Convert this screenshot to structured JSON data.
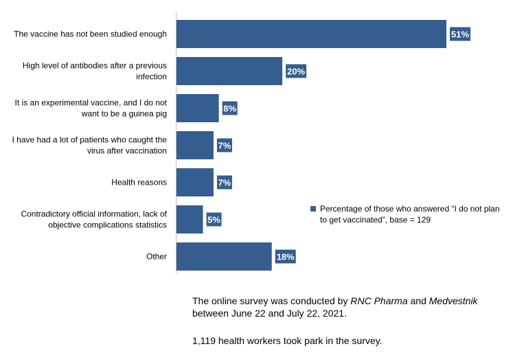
{
  "colors": {
    "bar": "#355d8f",
    "axis": "#bfbfbf",
    "label_box": "#355d8f"
  },
  "chart_data": {
    "type": "bar",
    "orientation": "horizontal",
    "categories": [
      [
        "The vaccine has not been studied enough"
      ],
      [
        "High level of antibodies after a previous",
        "infection"
      ],
      [
        "It is an experimental vaccine, and I do not",
        "want to be a guinea pig"
      ],
      [
        "I have had a lot of patients who caught the",
        "virus after vaccination"
      ],
      [
        "Health reasons"
      ],
      [
        "Contradictory official information, lack of",
        "objective complications statistics"
      ],
      [
        "Other"
      ]
    ],
    "series": [
      {
        "name": "Percentage of those who answered “I do not plan to get vaccinated”, base = 129",
        "values": [
          51,
          20,
          8,
          7,
          7,
          5,
          18
        ],
        "labels": [
          "51%",
          "20%",
          "8%",
          "7%",
          "7%",
          "5%",
          "18%"
        ]
      }
    ],
    "xlim": [
      0,
      51
    ],
    "grid": false,
    "legend_position": "right"
  },
  "legend": {
    "line1": "Percentage of those who answered “I do not plan",
    "line2": "to get vaccinated”, base = 129"
  },
  "notes": {
    "line1_a": "The online survey was conducted by ",
    "line1_b": "RNC Pharma",
    "line1_c": " and ",
    "line1_d": "Medvestnik",
    "line2": "between June 22 and July 22, 2021.",
    "line3": "1,119 health workers took park in the survey."
  }
}
